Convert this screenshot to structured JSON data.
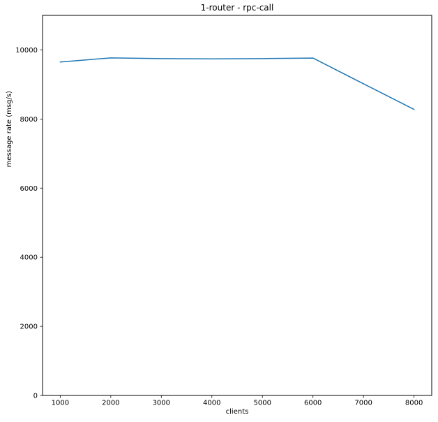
{
  "chart_data": {
    "type": "line",
    "title": "1-router - rpc-call",
    "xlabel": "clients",
    "ylabel": "message rate (msg/s)",
    "x": [
      1000,
      2000,
      3000,
      4000,
      5000,
      6000,
      7000,
      8000
    ],
    "series": [
      {
        "name": "rpc-call",
        "values": [
          9650,
          9770,
          9750,
          9740,
          9750,
          9765,
          9020,
          8280
        ],
        "color": "#1f77b4"
      }
    ],
    "xlim": [
      650,
      8350
    ],
    "ylim": [
      0,
      11000
    ],
    "xticks": [
      1000,
      2000,
      3000,
      4000,
      5000,
      6000,
      7000,
      8000
    ],
    "yticks": [
      0,
      2000,
      4000,
      6000,
      8000,
      10000
    ],
    "grid": false,
    "legend_position": "none",
    "axis_color": "#000000",
    "background_color": "#ffffff"
  }
}
